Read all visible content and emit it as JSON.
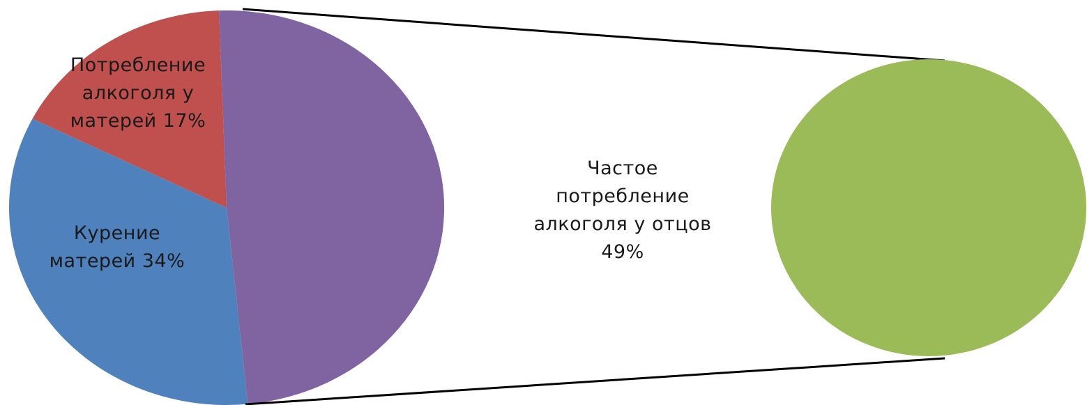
{
  "chart_data": {
    "type": "pie",
    "subtype": "pie-of-pie",
    "title": "",
    "series": [
      {
        "name": "",
        "categories": [
          "Потребление алкоголя у матерей",
          "Курение матерей",
          "Частое потребление алкоголя у отцов"
        ],
        "values": [
          17,
          34,
          49
        ],
        "unit": "%"
      }
    ],
    "slices": [
      {
        "label_lines": [
          "Потребление",
          "алкоголя у",
          "матерей 17%"
        ],
        "value": 17,
        "color": "#c0504d"
      },
      {
        "label_lines": [
          "Курение",
          "матерей 34%"
        ],
        "value": 34,
        "color": "#4f81bd"
      },
      {
        "label_lines": [
          "Частое",
          "потребление",
          "алкоголя у отцов",
          "49%"
        ],
        "value": 49,
        "color": "#8064a2",
        "split_to_secondary": true
      }
    ],
    "secondary": {
      "value": 49,
      "color": "#9bbb59"
    },
    "legend": "none"
  }
}
